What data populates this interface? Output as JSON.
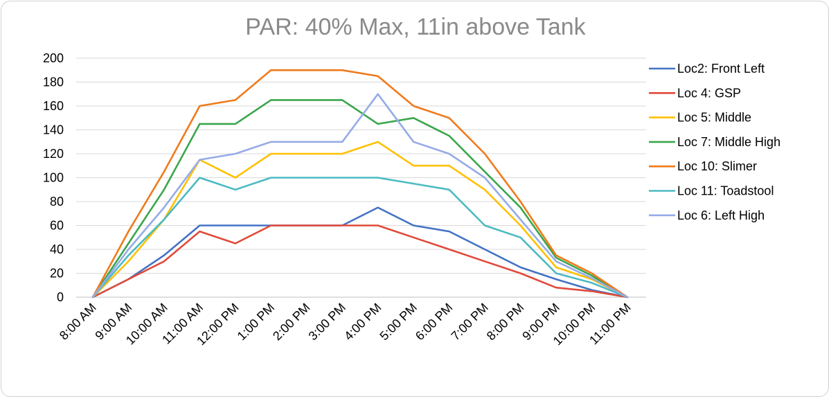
{
  "chart_data": {
    "type": "line",
    "title": "PAR: 40% Max, 11in above Tank",
    "xlabel": "",
    "ylabel": "",
    "ylim": [
      0,
      200
    ],
    "yticks": [
      0,
      20,
      40,
      60,
      80,
      100,
      120,
      140,
      160,
      180,
      200
    ],
    "categories": [
      "8:00 AM",
      "9:00 AM",
      "10:00 AM",
      "11:00 AM",
      "12:00 PM",
      "1:00 PM",
      "2:00 PM",
      "3:00 PM",
      "4:00 PM",
      "5:00 PM",
      "6:00 PM",
      "7:00 PM",
      "8:00 PM",
      "9:00 PM",
      "10:00 PM",
      "11:00 PM"
    ],
    "legend_position": "right",
    "series": [
      {
        "name": "Loc2: Front Left",
        "color": "#4472c4",
        "values": [
          0,
          15,
          35,
          60,
          60,
          60,
          60,
          60,
          75,
          60,
          55,
          40,
          25,
          15,
          6,
          0
        ]
      },
      {
        "name": "Loc 4: GSP",
        "color": "#e04b3a",
        "values": [
          0,
          15,
          30,
          55,
          45,
          60,
          60,
          60,
          60,
          50,
          40,
          30,
          20,
          8,
          5,
          0
        ]
      },
      {
        "name": "Loc 5: Middle",
        "color": "#ffc000",
        "values": [
          0,
          30,
          65,
          115,
          100,
          120,
          120,
          120,
          130,
          110,
          110,
          90,
          60,
          25,
          15,
          0
        ]
      },
      {
        "name": "Loc 7: Middle High",
        "color": "#3aa64c",
        "values": [
          0,
          45,
          90,
          145,
          145,
          165,
          165,
          165,
          145,
          150,
          135,
          105,
          75,
          33,
          18,
          0
        ]
      },
      {
        "name": "Loc 10: Slimer",
        "color": "#f07a1a",
        "values": [
          0,
          55,
          105,
          160,
          165,
          190,
          190,
          190,
          185,
          160,
          150,
          120,
          80,
          35,
          20,
          0
        ]
      },
      {
        "name": "Loc 11: Toadstool",
        "color": "#4bbac2",
        "values": [
          0,
          35,
          65,
          100,
          90,
          100,
          100,
          100,
          100,
          95,
          90,
          60,
          50,
          20,
          12,
          0
        ]
      },
      {
        "name": "Loc 6: Left High",
        "color": "#96abe6",
        "values": [
          0,
          40,
          75,
          115,
          120,
          130,
          130,
          130,
          170,
          130,
          120,
          100,
          65,
          30,
          16,
          0
        ]
      }
    ]
  }
}
